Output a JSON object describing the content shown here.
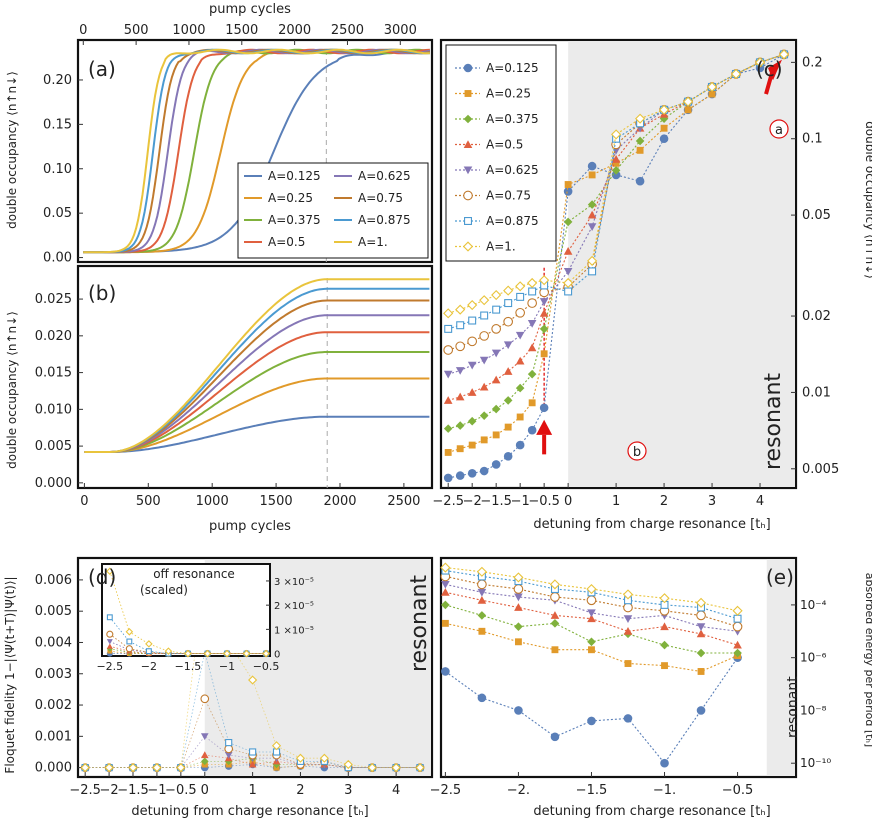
{
  "colors": {
    "A=0.125": "#5a7fb8",
    "A=0.25": "#e19a2a",
    "A=0.375": "#80b13c",
    "A=0.5": "#e0603f",
    "A=0.625": "#8577b6",
    "A=0.75": "#c07a2e",
    "A=0.875": "#4b9ad1",
    "A=1.": "#e9c43c",
    "grey_region": "#ebebeb",
    "marker_red": "#e01010"
  },
  "text": {
    "pump_cycles_top": "pump cycles",
    "pump_cycles_bottom": "pump cycles",
    "ylabel_a": "double occupancy ⟨n↑n↓⟩",
    "ylabel_b": "double occupancy ⟨n↑n↓⟩",
    "ylabel_c": "double occupancy ⟨n↑n↓⟩",
    "ylabel_d": "Floquet fidelity 1−|⟨Ψ(t+T)|Ψ(t)⟩|",
    "ylabel_e": "absorbed energy per period [tₕ]",
    "xlabel_c": "detuning from charge resonance [tₕ]",
    "xlabel_d": "detuning from charge resonance [tₕ]",
    "xlabel_e": "detuning from charge resonance [tₕ]",
    "resonant_c": "resonant",
    "resonant_d": "resonant",
    "resonant_e": "resonant",
    "panel_a": "(a)",
    "panel_b": "(b)",
    "panel_c": "(c)",
    "panel_d": "(d)",
    "panel_e": "(e)",
    "mark_a": "a",
    "mark_b": "b",
    "inset_title_1": "off resonance",
    "inset_title_2": "(scaled)"
  },
  "legend_a_entries": [
    "A=0.125",
    "A=0.25",
    "A=0.375",
    "A=0.5",
    "A=0.625",
    "A=0.75",
    "A=0.875",
    "A=1."
  ],
  "legend_c_entries": [
    "A=0.125",
    "A=0.25",
    "A=0.375",
    "A=0.5",
    "A=0.625",
    "A=0.75",
    "A=0.875",
    "A=1."
  ],
  "chart_data": [
    {
      "id": "a",
      "type": "line",
      "xlabel": "pump cycles",
      "ylabel": "double occupancy ⟨n↑n↓⟩",
      "xlim": [
        -50,
        3300
      ],
      "ylim": [
        -0.005,
        0.245
      ],
      "xticks": [
        0,
        500,
        1000,
        1500,
        2000,
        2500,
        3000
      ],
      "yticks": [
        0.0,
        0.05,
        0.1,
        0.15,
        0.2
      ],
      "ytick_labels": [
        "0.00",
        "0.05",
        "0.10",
        "0.15",
        "0.20"
      ],
      "dashed_vline_x": 2300,
      "series": [
        {
          "name": "A=0.125",
          "mid": 1800,
          "w": 200
        },
        {
          "name": "A=0.25",
          "mid": 1300,
          "w": 110
        },
        {
          "name": "A=0.375",
          "mid": 1050,
          "w": 85
        },
        {
          "name": "A=0.5",
          "mid": 900,
          "w": 72
        },
        {
          "name": "A=0.625",
          "mid": 800,
          "w": 66
        },
        {
          "name": "A=0.75",
          "mid": 720,
          "w": 62
        },
        {
          "name": "A=0.875",
          "mid": 660,
          "w": 58
        },
        {
          "name": "A=1.",
          "mid": 610,
          "w": 55
        }
      ],
      "y_min": 0.006,
      "y_max": 0.232
    },
    {
      "id": "b",
      "type": "line",
      "xlabel": "pump cycles",
      "ylabel": "double occupancy ⟨n↑n↓⟩",
      "xlim": [
        -50,
        2720
      ],
      "ylim": [
        -0.0007,
        0.0295
      ],
      "xticks": [
        0,
        500,
        1000,
        1500,
        2000,
        2500
      ],
      "yticks": [
        0.0,
        0.005,
        0.01,
        0.015,
        0.02,
        0.025
      ],
      "ytick_labels": [
        "0.000",
        "0.005",
        "0.010",
        "0.015",
        "0.020",
        "0.025"
      ],
      "dashed_vline_x": 1900,
      "start_value": 0.0042,
      "ramp_end": 1900,
      "series": [
        {
          "name": "A=0.125",
          "final": 0.009
        },
        {
          "name": "A=0.25",
          "final": 0.0142
        },
        {
          "name": "A=0.375",
          "final": 0.0178
        },
        {
          "name": "A=0.5",
          "final": 0.0205
        },
        {
          "name": "A=0.625",
          "final": 0.0228
        },
        {
          "name": "A=0.75",
          "final": 0.0248
        },
        {
          "name": "A=0.875",
          "final": 0.0264
        },
        {
          "name": "A=1.",
          "final": 0.0277
        }
      ]
    },
    {
      "id": "c",
      "type": "scatter",
      "yscale": "log",
      "xlabel": "detuning from charge resonance [tₕ]",
      "ylabel": "double occupancy ⟨n↑n↓⟩",
      "xlim": [
        -2.65,
        4.75
      ],
      "ylim": [
        0.0042,
        0.245
      ],
      "xticks": [
        -2.5,
        -2,
        -1.5,
        -1,
        -0.5,
        0,
        1,
        2,
        3,
        4
      ],
      "xtick_labels": [
        "−2.5",
        "−2",
        "−1.5",
        "−1",
        "−0.5",
        "0",
        "1",
        "2",
        "3",
        "4"
      ],
      "yticks": [
        0.005,
        0.01,
        0.02,
        0.05,
        0.1,
        0.2
      ],
      "ytick_labels": [
        "0.005",
        "0.01",
        "0.02",
        "0.05",
        "0.1",
        "0.2"
      ],
      "resonant_from": 0,
      "x": [
        -2.5,
        -2.25,
        -2,
        -1.75,
        -1.5,
        -1.25,
        -1,
        -0.75,
        -0.5,
        0,
        0.5,
        1,
        1.5,
        2,
        2.5,
        3,
        3.5,
        4,
        4.5
      ],
      "series": [
        {
          "name": "A=0.125",
          "marker": "circle",
          "values": [
            0.0046,
            0.0047,
            0.0048,
            0.0049,
            0.0052,
            0.0056,
            0.0062,
            0.0071,
            0.0087,
            0.062,
            0.078,
            0.072,
            0.068,
            0.1,
            0.13,
            0.15,
            0.18,
            0.19,
            0.215
          ]
        },
        {
          "name": "A=0.25",
          "marker": "square",
          "values": [
            0.0058,
            0.006,
            0.0062,
            0.0065,
            0.0068,
            0.0073,
            0.008,
            0.0091,
            0.0142,
            0.066,
            0.072,
            0.08,
            0.09,
            0.11,
            0.13,
            0.15,
            0.18,
            0.2,
            0.215
          ]
        },
        {
          "name": "A=0.375",
          "marker": "diamond",
          "values": [
            0.0072,
            0.0074,
            0.0077,
            0.0081,
            0.0086,
            0.0093,
            0.0104,
            0.0118,
            0.0178,
            0.047,
            0.055,
            0.075,
            0.098,
            0.12,
            0.14,
            0.16,
            0.18,
            0.2,
            0.215
          ]
        },
        {
          "name": "A=0.5",
          "marker": "triangle",
          "values": [
            0.0093,
            0.0096,
            0.01,
            0.0105,
            0.0112,
            0.0121,
            0.0133,
            0.015,
            0.0205,
            0.036,
            0.05,
            0.083,
            0.11,
            0.125,
            0.14,
            0.16,
            0.18,
            0.2,
            0.215
          ]
        },
        {
          "name": "A=0.625",
          "marker": "tridown",
          "values": [
            0.0118,
            0.0122,
            0.0128,
            0.0134,
            0.0143,
            0.0154,
            0.0168,
            0.0187,
            0.0228,
            0.03,
            0.045,
            0.09,
            0.11,
            0.13,
            0.14,
            0.16,
            0.18,
            0.2,
            0.215
          ]
        },
        {
          "name": "A=0.75",
          "marker": "ocircle",
          "values": [
            0.0147,
            0.0152,
            0.0159,
            0.0167,
            0.0178,
            0.019,
            0.0206,
            0.0225,
            0.0248,
            0.026,
            0.032,
            0.095,
            0.115,
            0.13,
            0.14,
            0.16,
            0.18,
            0.2,
            0.215
          ]
        },
        {
          "name": "A=0.875",
          "marker": "osquare",
          "values": [
            0.0178,
            0.0184,
            0.0192,
            0.0201,
            0.0212,
            0.0225,
            0.0238,
            0.025,
            0.0264,
            0.025,
            0.03,
            0.1,
            0.115,
            0.13,
            0.14,
            0.16,
            0.18,
            0.2,
            0.215
          ]
        },
        {
          "name": "A=1.",
          "marker": "odiamond",
          "values": [
            0.0205,
            0.0212,
            0.0221,
            0.0231,
            0.0242,
            0.0252,
            0.0262,
            0.027,
            0.0277,
            0.027,
            0.033,
            0.104,
            0.12,
            0.13,
            0.14,
            0.16,
            0.18,
            0.2,
            0.215
          ]
        }
      ],
      "marker_a_x": 4.5,
      "marker_b_x": -0.5
    },
    {
      "id": "d",
      "type": "scatter",
      "xlabel": "detuning from charge resonance [tₕ]",
      "ylabel": "Floquet fidelity 1−|⟨Ψ(t+T)|Ψ(t)⟩|",
      "xlim": [
        -2.65,
        4.75
      ],
      "ylim": [
        -0.0003,
        0.0067
      ],
      "xticks": [
        -2.5,
        -2,
        -1.5,
        -1,
        -0.5,
        0,
        1,
        2,
        3,
        4
      ],
      "xtick_labels": [
        "−2.5",
        "−2",
        "−1.5",
        "−1",
        "−0.5",
        "0",
        "1",
        "2",
        "3",
        "4"
      ],
      "yticks": [
        0.0,
        0.001,
        0.002,
        0.003,
        0.004,
        0.005,
        0.006
      ],
      "ytick_labels": [
        "0.000",
        "0.001",
        "0.002",
        "0.003",
        "0.004",
        "0.005",
        "0.006"
      ],
      "resonant_from": 0,
      "x": [
        -2.5,
        -2,
        -1.5,
        -1,
        -0.5,
        0,
        0.5,
        1,
        1.5,
        2,
        2.5,
        3,
        3.5,
        4,
        4.5
      ],
      "series": [
        {
          "name": "A=0.125",
          "marker": "circle",
          "values": [
            0,
            0,
            0,
            0,
            0,
            0.0,
            5e-05,
            0.0001,
            0.0,
            5e-05,
            0.0,
            0.0,
            0.0,
            0.0,
            0.0
          ]
        },
        {
          "name": "A=0.25",
          "marker": "square",
          "values": [
            0,
            0,
            0,
            0,
            0,
            0.0001,
            0.0001,
            0.0002,
            0.0,
            5e-05,
            0.0001,
            0.0,
            0.0,
            0.0,
            0.0
          ]
        },
        {
          "name": "A=0.375",
          "marker": "diamond",
          "values": [
            0,
            0,
            0,
            0,
            0,
            0.0002,
            0.0002,
            0.0003,
            0.0001,
            0.0001,
            0.0001,
            0.0,
            0.0,
            0.0,
            0.0
          ]
        },
        {
          "name": "A=0.5",
          "marker": "triangle",
          "values": [
            0,
            0,
            0,
            0,
            0,
            0.0004,
            0.0003,
            0.0001,
            0.0002,
            0.0001,
            0.0001,
            0.0,
            0.0,
            0.0,
            0.0
          ]
        },
        {
          "name": "A=0.625",
          "marker": "tridown",
          "values": [
            0,
            0,
            0,
            0,
            0,
            0.001,
            0.0004,
            0.0003,
            0.0003,
            0.0001,
            0.0001,
            0.0,
            0.0,
            0.0,
            0.0
          ]
        },
        {
          "name": "A=0.75",
          "marker": "ocircle",
          "values": [
            0,
            0,
            0,
            0,
            0,
            0.0022,
            0.0006,
            0.0004,
            0.0004,
            0.0001,
            0.0002,
            0.0,
            0.0,
            0.0,
            0.0
          ]
        },
        {
          "name": "A=0.875",
          "marker": "osquare",
          "values": [
            0,
            0,
            0,
            0,
            0,
            0.0037,
            0.0008,
            0.0005,
            0.0005,
            0.0002,
            0.0002,
            0.0,
            0.0,
            0.0,
            0.0
          ]
        },
        {
          "name": "A=1.",
          "marker": "odiamond",
          "values": [
            0,
            0,
            0,
            0,
            0,
            0.0062,
            0.004,
            0.0028,
            0.0007,
            0.0003,
            0.0003,
            0.0001,
            0.0,
            0.0,
            0.0
          ]
        }
      ],
      "inset": {
        "title": "off resonance (scaled)",
        "xlim": [
          -2.6,
          -0.45
        ],
        "ylim": [
          -1e-06,
          3.7e-05
        ],
        "xticks": [
          -2.5,
          -2,
          -1.5,
          -1,
          -0.5
        ],
        "xtick_labels": [
          "−2.5",
          "−2",
          "−1.5",
          "−1",
          "−0.5"
        ],
        "yticks": [
          0,
          1e-05,
          2e-05,
          3e-05
        ],
        "ytick_labels": [
          "0",
          "1 ×10⁻⁵",
          "2 ×10⁻⁵",
          "3 ×10⁻⁵"
        ],
        "x": [
          -2.5,
          -2.25,
          -2,
          -1.75,
          -1.5,
          -1.25,
          -1,
          -0.75,
          -0.5
        ],
        "series": [
          {
            "name": "A=0.125",
            "marker": "circle",
            "values": [
              0,
              0,
              0,
              0,
              0,
              0,
              0,
              0,
              0
            ]
          },
          {
            "name": "A=0.25",
            "marker": "square",
            "values": [
              1e-06,
              0,
              0,
              0,
              0,
              0,
              0,
              0,
              0
            ]
          },
          {
            "name": "A=0.375",
            "marker": "diamond",
            "values": [
              2e-06,
              5e-07,
              0,
              0,
              0,
              0,
              0,
              0,
              0
            ]
          },
          {
            "name": "A=0.5",
            "marker": "triangle",
            "values": [
              3e-06,
              1e-06,
              0,
              0,
              0,
              0,
              0,
              0,
              0
            ]
          },
          {
            "name": "A=0.625",
            "marker": "tridown",
            "values": [
              5e-06,
              1.5e-06,
              5e-07,
              0,
              0,
              0,
              0,
              0,
              0
            ]
          },
          {
            "name": "A=0.75",
            "marker": "ocircle",
            "values": [
              8e-06,
              2e-06,
              5e-07,
              0,
              0,
              0,
              0,
              0,
              0
            ]
          },
          {
            "name": "A=0.875",
            "marker": "osquare",
            "values": [
              1.5e-05,
              5e-06,
              1e-06,
              0,
              0,
              0,
              0,
              0,
              0
            ]
          },
          {
            "name": "A=1.",
            "marker": "odiamond",
            "values": [
              3.4e-05,
              9e-06,
              4e-06,
              1e-06,
              0,
              0,
              0,
              0,
              0
            ]
          }
        ]
      }
    },
    {
      "id": "e",
      "type": "scatter",
      "yscale": "log",
      "xlabel": "detuning from charge resonance [tₕ]",
      "ylabel": "absorbed energy per period [tₕ]",
      "xlim": [
        -2.53,
        -0.1
      ],
      "ylim": [
        3e-11,
        0.006
      ],
      "xticks": [
        -2.5,
        -2,
        -1.5,
        -1,
        -0.5
      ],
      "xtick_labels": [
        "−2.5",
        "−2.",
        "−1.5",
        "−1.",
        "−0.5"
      ],
      "yticks": [
        1e-10,
        1e-08,
        1e-06,
        0.0001
      ],
      "ytick_labels": [
        "10⁻¹⁰",
        "10⁻⁸",
        "10⁻⁶",
        "10⁻⁴"
      ],
      "resonant_from": -0.3,
      "x": [
        -2.5,
        -2.25,
        -2,
        -1.75,
        -1.5,
        -1.25,
        -1,
        -0.75,
        -0.5
      ],
      "series": [
        {
          "name": "A=0.125",
          "marker": "circle",
          "values": [
            3e-07,
            3e-08,
            1e-08,
            1e-09,
            4e-09,
            5e-09,
            1e-10,
            1e-08,
            1e-06
          ]
        },
        {
          "name": "A=0.25",
          "marker": "square",
          "values": [
            2e-05,
            1e-05,
            4e-06,
            2e-06,
            2e-06,
            6e-07,
            5e-07,
            3e-07,
            1.2e-06
          ]
        },
        {
          "name": "A=0.375",
          "marker": "diamond",
          "values": [
            0.0001,
            4e-05,
            1.5e-05,
            2e-05,
            4e-06,
            8e-06,
            3e-06,
            1.5e-06,
            1.5e-06
          ]
        },
        {
          "name": "A=0.5",
          "marker": "triangle",
          "values": [
            0.0003,
            0.00015,
            8e-05,
            4e-05,
            3e-05,
            1e-05,
            1.5e-05,
            8e-06,
            3e-06
          ]
        },
        {
          "name": "A=0.625",
          "marker": "tridown",
          "values": [
            0.0006,
            0.0003,
            0.0002,
            0.00015,
            5e-05,
            3e-05,
            4e-05,
            1.5e-05,
            1e-05
          ]
        },
        {
          "name": "A=0.75",
          "marker": "ocircle",
          "values": [
            0.0012,
            0.0006,
            0.0004,
            0.0002,
            0.00015,
            8e-05,
            6e-05,
            4e-05,
            1.5e-05
          ]
        },
        {
          "name": "A=0.875",
          "marker": "osquare",
          "values": [
            0.002,
            0.0012,
            0.0008,
            0.0004,
            0.0003,
            0.00015,
            0.0001,
            8e-05,
            3e-05
          ]
        },
        {
          "name": "A=1.",
          "marker": "odiamond",
          "values": [
            0.0026,
            0.0018,
            0.0011,
            0.0006,
            0.0004,
            0.00025,
            0.00018,
            0.00012,
            6e-05
          ]
        }
      ]
    }
  ]
}
